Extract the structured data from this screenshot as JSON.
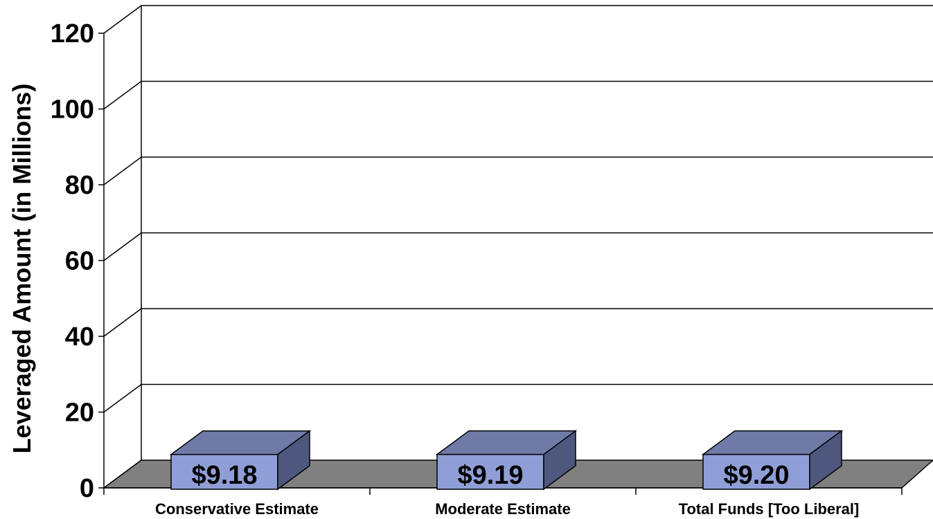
{
  "chart_data": {
    "type": "bar",
    "categories": [
      "Conservative Estimate",
      "Moderate Estimate",
      "Total Funds [Too Liberal]"
    ],
    "values": [
      9.18,
      9.19,
      9.2
    ],
    "data_labels": [
      "$9.18",
      "$9.19",
      "$9.20"
    ],
    "title": "",
    "xlabel": "",
    "ylabel": "Leveraged Amount (in Millions)",
    "ylim": [
      0,
      120
    ],
    "y_ticks": [
      "0",
      "20",
      "40",
      "60",
      "80",
      "100",
      "120"
    ],
    "grid": true,
    "three_d": true,
    "colors": {
      "bar_front": "#8F9ED6",
      "bar_top": "#6F7BA6",
      "bar_side": "#4E587E",
      "floor": "#808080",
      "gridline": "#000000"
    }
  }
}
